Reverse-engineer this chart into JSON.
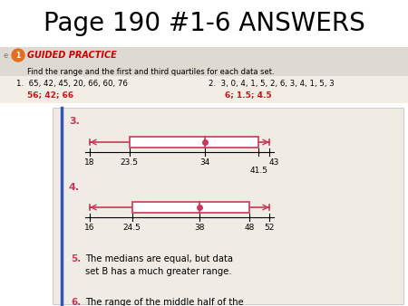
{
  "title": "Page 190 #1-6 ANSWERS",
  "title_fontsize": 20,
  "pink": "#c8385a",
  "red_answer": "#cc1111",
  "guided_practice_color": "#cc0000",
  "header_text": "GUIDED PRACTICE",
  "instruction": "Find the range and the first and third quartiles for each data set.",
  "prob1_q": "1.  65, 42, 45, 20, 66, 60, 76",
  "prob1_a": "56; 42; 66",
  "prob2_q": "2.  3, 0, 4, 1, 5, 2, 6, 3, 4, 1, 5, 3",
  "prob2_a": "6; 1.5; 4.5",
  "box3": {
    "min": 18,
    "q1": 23.5,
    "med": 34,
    "q3": 41.5,
    "max": 43
  },
  "box4": {
    "min": 16,
    "q1": 24.5,
    "med": 38,
    "q3": 48,
    "max": 52
  },
  "text5": "The medians are equal, but data\nset B has a much greater range.",
  "text6": "The range of the middle half of the\ndata is greater for data set B.",
  "photo_bg": "#eae6df",
  "header_bg": "#dedad2",
  "white": "#ffffff",
  "title_bg": "#ffffff"
}
